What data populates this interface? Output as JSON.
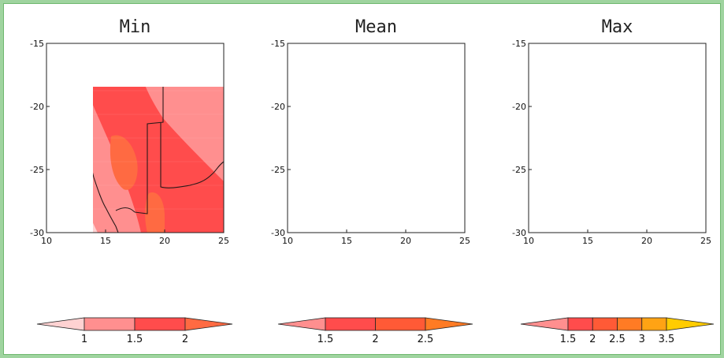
{
  "chart_data": [
    {
      "type": "heatmap",
      "title": "Min",
      "x_ticks": [
        "10",
        "15",
        "20",
        "25"
      ],
      "y_ticks": [
        "-15",
        "-20",
        "-25",
        "-30"
      ],
      "xlim": [
        10,
        25
      ],
      "ylim": [
        -30,
        -15
      ],
      "levels": [
        1,
        1.5,
        2
      ],
      "colorbar_labels": [
        "1",
        "1.5",
        "2"
      ],
      "colors": [
        "#ffd2d2",
        "#ff8f8f",
        "#ff4c4c",
        "#ff6a42"
      ]
    },
    {
      "type": "heatmap",
      "title": "Mean",
      "x_ticks": [
        "10",
        "15",
        "20",
        "25"
      ],
      "y_ticks": [
        "-15",
        "-20",
        "-25",
        "-30"
      ],
      "xlim": [
        10,
        25
      ],
      "ylim": [
        -30,
        -15
      ],
      "levels": [
        1.5,
        2,
        2.5
      ],
      "colorbar_labels": [
        "1.5",
        "2",
        "2.5"
      ],
      "colors": [
        "#ff8f8f",
        "#ff4c4c",
        "#ff5a36",
        "#ff7b24"
      ]
    },
    {
      "type": "heatmap",
      "title": "Max",
      "x_ticks": [
        "10",
        "15",
        "20",
        "25"
      ],
      "y_ticks": [
        "-15",
        "-20",
        "-25",
        "-30"
      ],
      "xlim": [
        10,
        25
      ],
      "ylim": [
        -30,
        -15
      ],
      "levels": [
        1.5,
        2,
        2.5,
        3,
        3.5
      ],
      "colorbar_labels": [
        "1.5",
        "2",
        "2.5",
        "3",
        "3.5"
      ],
      "colors": [
        "#ff8f8f",
        "#ff4c4c",
        "#ff5a36",
        "#ff7b24",
        "#ffa314",
        "#ffcc00"
      ]
    }
  ]
}
